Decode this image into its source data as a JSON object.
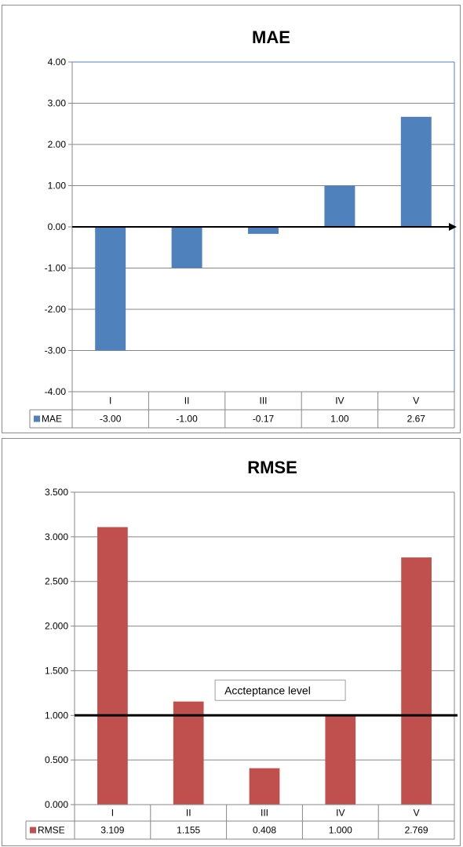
{
  "chart_data": [
    {
      "type": "bar",
      "title": "MAE",
      "categories": [
        "I",
        "II",
        "III",
        "IV",
        "V"
      ],
      "series": [
        {
          "name": "MAE",
          "values": [
            -3.0,
            -1.0,
            -0.17,
            1.0,
            2.67
          ],
          "color": "#4f81bd"
        }
      ],
      "value_labels": [
        "-3.00",
        "-1.00",
        "-0.17",
        "1.00",
        "2.67"
      ],
      "yticks": [
        "4.00",
        "3.00",
        "2.00",
        "1.00",
        "0.00",
        "-1.00",
        "-2.00",
        "-3.00",
        "-4.00"
      ],
      "ylim": [
        -4,
        4
      ],
      "grid": true,
      "zero_axis_arrow": true,
      "legend": "data-table"
    },
    {
      "type": "bar",
      "title": "RMSE",
      "categories": [
        "I",
        "II",
        "III",
        "IV",
        "V"
      ],
      "series": [
        {
          "name": "RMSE",
          "values": [
            3.109,
            1.155,
            0.408,
            1.0,
            2.769
          ],
          "color": "#c0504d"
        }
      ],
      "value_labels": [
        "3.109",
        "1.155",
        "0.408",
        "1.000",
        "2.769"
      ],
      "yticks": [
        "3.500",
        "3.000",
        "2.500",
        "2.000",
        "1.500",
        "1.000",
        "0.500",
        "0.000"
      ],
      "ylim": [
        0,
        3.5
      ],
      "grid": true,
      "reference_line": {
        "value": 1.0,
        "label": "Accteptance level"
      },
      "legend": "data-table"
    }
  ]
}
